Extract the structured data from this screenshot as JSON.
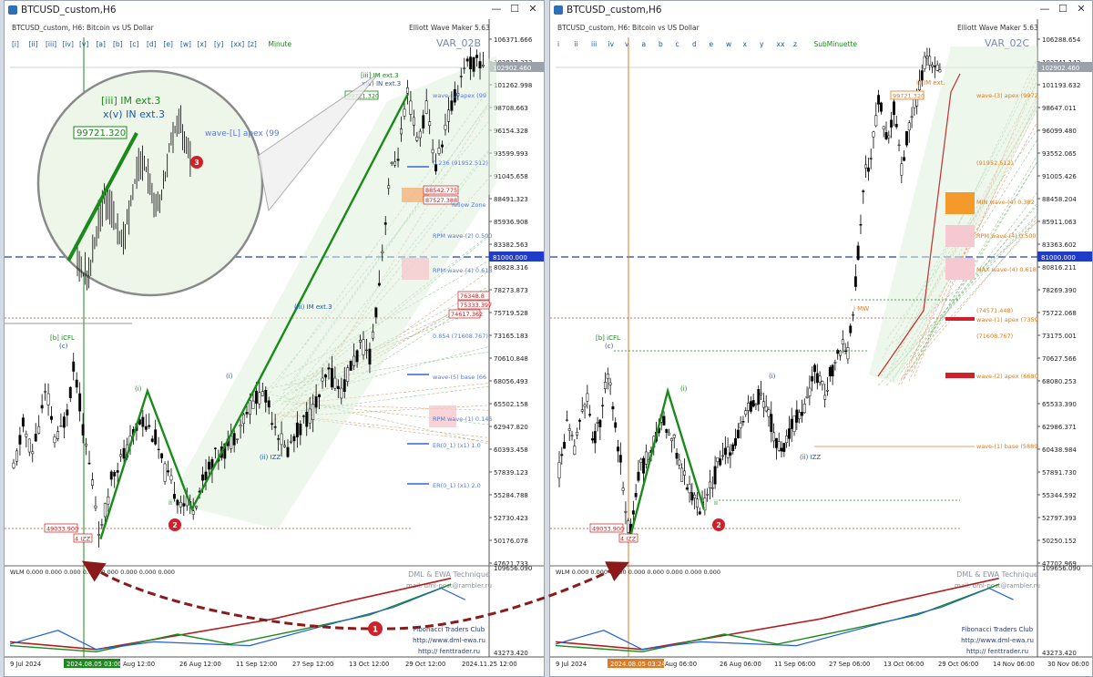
{
  "windows": [
    {
      "id": "left",
      "title": "BTCUSD_custom,H6",
      "header": "BTCUSD_custom, H6:  Bitcoin vs US Dollar",
      "wave_maker": "Elliott Wave Maker 5.63",
      "var_label": "VAR_02B",
      "degree_buttons": [
        "[i]",
        "[ii]",
        "[iii]",
        "[iv]",
        "[v]",
        "[a]",
        "[b]",
        "[c]",
        "[d]",
        "[e]",
        "[w]",
        "[x]",
        "[y]",
        "[xx]",
        "[z]"
      ],
      "degree_name": "Minute",
      "price_ticks": [
        "106371.666",
        "103817.333",
        "101262.998",
        "98708.663",
        "96154.328",
        "93599.993",
        "91045.658",
        "88491.323",
        "85936.908",
        "83382.563",
        "80828.316",
        "78273.873",
        "75719.528",
        "73165.183",
        "70610.848",
        "68056.493",
        "65502.158",
        "62947.820",
        "60393.458",
        "57839.123",
        "55284.788",
        "52730.423",
        "50176.078",
        "47621.733"
      ],
      "current_price": "102902.460",
      "level_price": "81000.000",
      "indicator_ticks": [
        "109656.090",
        "43273.420"
      ],
      "dates": [
        "9 Jul 2024",
        "2024.08.05 03:00",
        "Aug 12:00",
        "26 Aug 12:00",
        "11 Sep 12:00",
        "27 Sep 12:00",
        "13 Oct 12:00",
        "29 Oct 12:00",
        "2024.11.25 12:00"
      ],
      "labels": {
        "start_price": "49033.900",
        "start_wave": "4 IZZ",
        "b_cfl": "[b] iCFL",
        "c": "(c)",
        "i": "(i)",
        "ii": "(ii)",
        "ii_b": "ii",
        "ii_izz": "(ii) IZZ",
        "iii_im": "[iii] IM ext.3",
        "iii_im_mid": "(iii) IM ext.3",
        "xv": "x(v) IN ext.3",
        "top_price": "99721.320",
        "box1": "88542.775",
        "box2": "87527.388",
        "box3": "76348.8",
        "box4": "75333.397",
        "box5": "74617.362",
        "wave_ll": "wave-[L] apex (99",
        "fib_1952": "0.236 (91952.512)",
        "yellow_zone": "Yellow Zone",
        "rpm2": "RPM wave-(2) 0.500",
        "rpm4": "RPM wave-(4) 0.618",
        "p854": "0.854 (71608.767)",
        "wave5": "wave-(5) base (66",
        "rpm1": "RPM wave-(1) 0.146",
        "er1": "ER(0_1) (x1) 1.0",
        "er2": "ER(0_1) (x1) 2.0",
        "wlm": "WLM  0.000  0.000  0.000  0.000  0.000  0.000  0.000  0.000"
      }
    },
    {
      "id": "right",
      "title": "BTCUSD_custom,H6",
      "header": "BTCUSD_custom, H6:  Bitcoin vs US Dollar",
      "wave_maker": "Elliott Wave Maker 5.63",
      "var_label": "VAR_02C",
      "degree_buttons": [
        "i",
        "ii",
        "iii",
        "iv",
        "v",
        "a",
        "b",
        "c",
        "d",
        "e",
        "w",
        "x",
        "y",
        "xx",
        "z"
      ],
      "degree_name": "SubMinuette",
      "price_ticks": [
        "106288.654",
        "103741.143",
        "101193.632",
        "98647.011",
        "96099.480",
        "93552.065",
        "91005.426",
        "88458.204",
        "85911.063",
        "83363.602",
        "80816.211",
        "78269.390",
        "75722.068",
        "73175.001",
        "70627.566",
        "68080.253",
        "65533.390",
        "62986.371",
        "60438.984",
        "57891.730",
        "55344.592",
        "52797.393",
        "50250.152",
        "47702.969"
      ],
      "current_price": "102902.460",
      "level_price": "81000.000",
      "indicator_ticks": [
        "109656.090",
        "43273.420"
      ],
      "dates": [
        "9 Jul 2024",
        "2024.08.05 03:24",
        "Aug 06:00",
        "26 Aug 06:00",
        "11 Sep 06:00",
        "27 Sep 06:00",
        "13 Oct 06:00",
        "29 Oct 06:00",
        "14 Nov 06:00",
        "30 Nov 06:00"
      ],
      "labels": {
        "start_price": "49033.900",
        "start_wave": "4 IZZ",
        "b_cfl": "[b] iCFL",
        "c": "(c)",
        "i": "(i)",
        "ii": "(ii)",
        "ii_b": "ii",
        "ii_izz": "(ii) IZZ",
        "iii_im": "iii IM ext.",
        "top_price": "99721.320",
        "wave3_apex": "wave-(3) apex (9972",
        "fib_1952": "(91952.512)",
        "min4": "MIN wave-(4) 0.382",
        "rpm4": "RPM wave-(4) 0.500",
        "max4": "MAX wave-(4) 0.618",
        "p74571": "(74571.448)",
        "wave1_apex": "wave-(1) apex (7359",
        "p71608": "(71608.767)",
        "wave2_apex": "wave-(2) apex (6680",
        "wave1_base": "wave-(1) base (5889",
        "imw": "i MW",
        "wlm": "WLM  0.000  0.000  0.000  0.000  0.000  0.000  0.000  0.000"
      }
    }
  ],
  "watermark": {
    "line1": "DML & EWA Technique",
    "line2": "mail: dml-post@rambler.ru",
    "line3": "Fibonacci   Traders   Club",
    "line4": "http://www.dml-ewa.ru",
    "line5": "http://    fenttrader.ru"
  },
  "annotations": [
    "1",
    "2",
    "3"
  ],
  "colors": {
    "wave_green": "#1a8a1a",
    "dash_blue": "#1e3cc8",
    "red_label": "#d0202a",
    "orange": "#e07a20",
    "arrow": "#8b1a1a",
    "pink_zone": "#f6c9d0"
  }
}
